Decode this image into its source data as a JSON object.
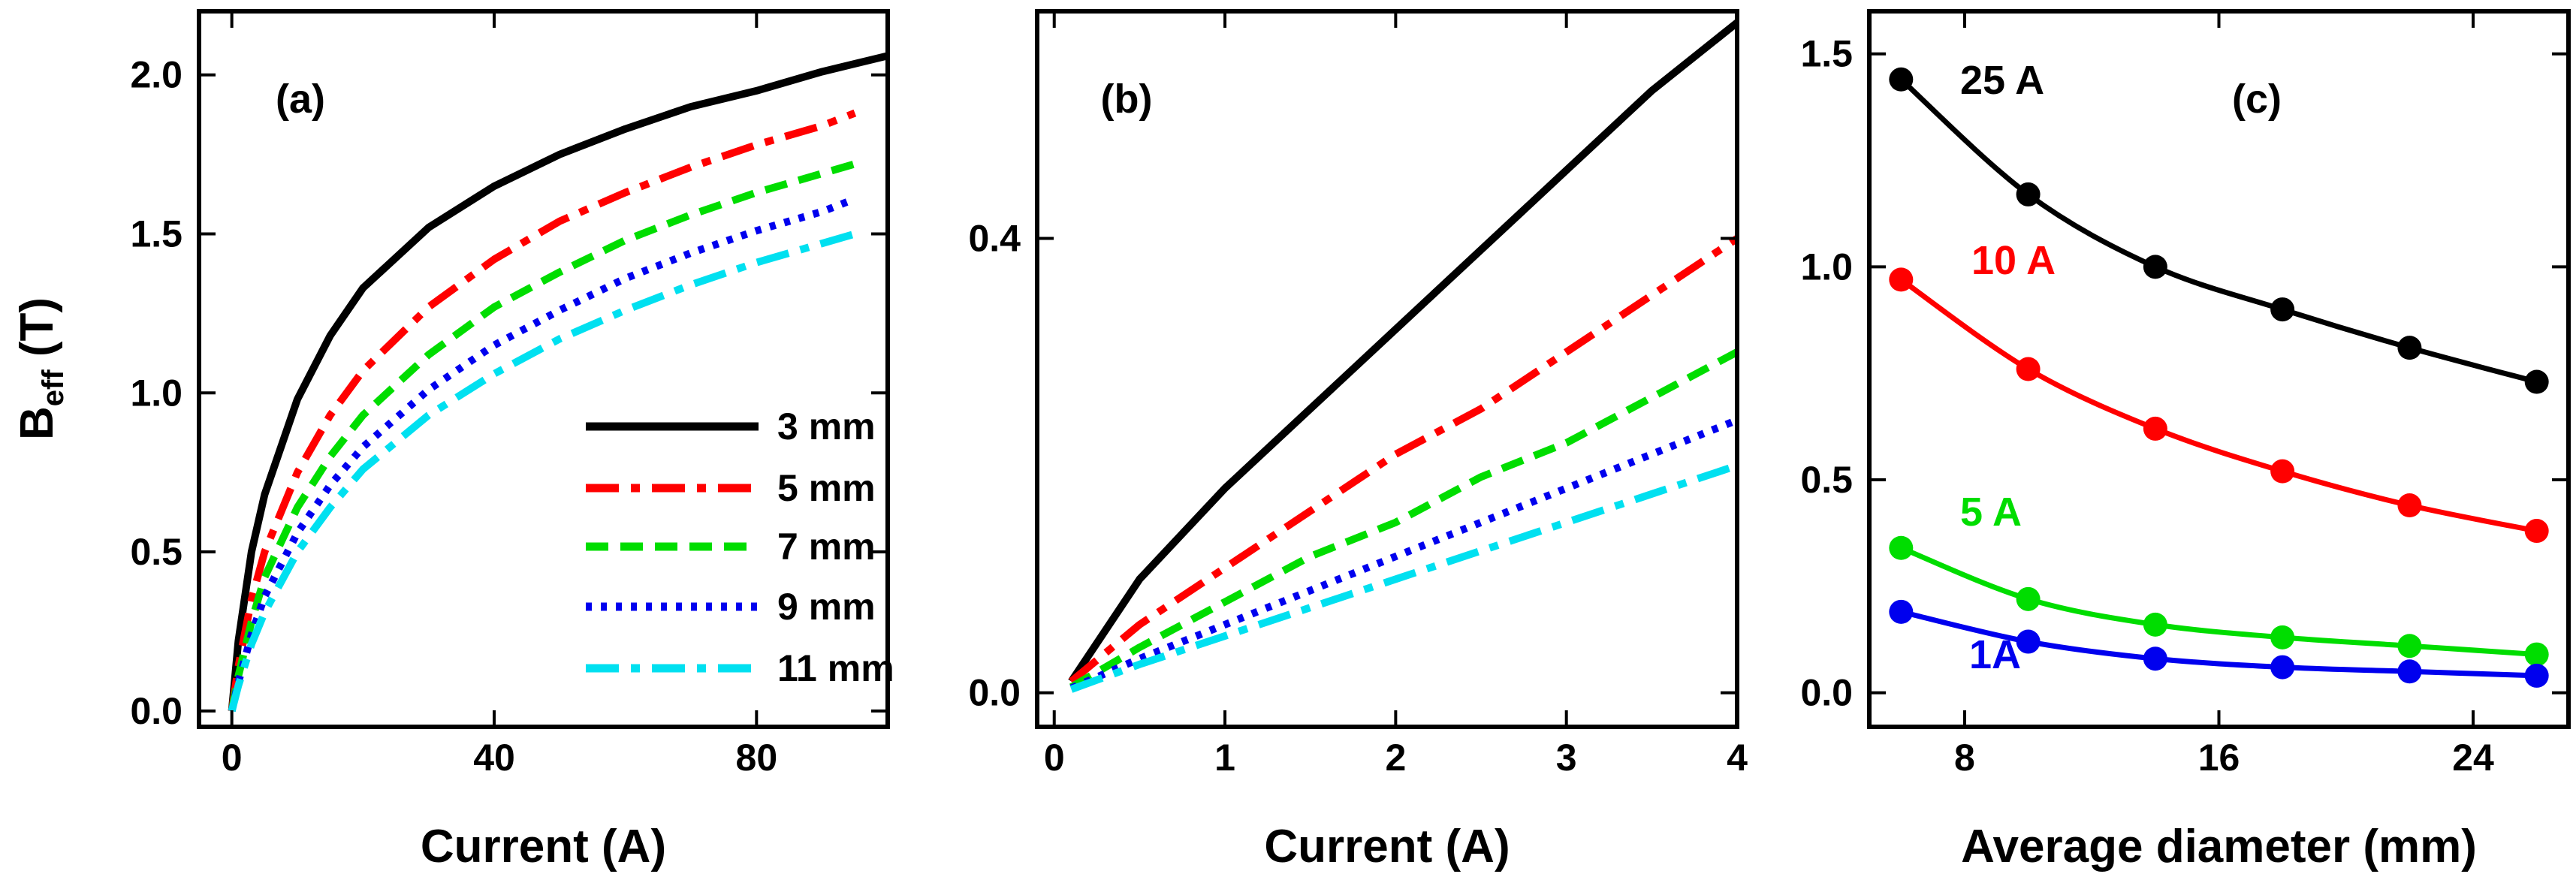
{
  "chart_data": [
    {
      "type": "line",
      "panel_label": "(a)",
      "xlabel": "Current (A)",
      "ylabel": "B",
      "ylabel_sub": "eff",
      "ylabel_unit": "(T)",
      "xlim": [
        -5,
        100
      ],
      "ylim": [
        -0.05,
        2.2
      ],
      "xticks": [
        0,
        40,
        80
      ],
      "xtick_labels": [
        "0",
        "40",
        "80"
      ],
      "yticks": [
        0,
        0.5,
        1.0,
        1.5,
        2.0
      ],
      "ytick_labels": [
        "0.0",
        "0.5",
        "1.0",
        "1.5",
        "2.0"
      ],
      "legend": {
        "placement": "bottom-right",
        "entries": [
          "3 mm",
          "5 mm",
          "7 mm",
          "9 mm",
          "11 mm"
        ]
      },
      "series": [
        {
          "name": "3 mm",
          "color": "#000000",
          "dash": "solid",
          "x": [
            0,
            1,
            3,
            5,
            10,
            15,
            20,
            30,
            40,
            50,
            60,
            70,
            80,
            90,
            100
          ],
          "y": [
            0,
            0.22,
            0.5,
            0.68,
            0.98,
            1.18,
            1.33,
            1.52,
            1.65,
            1.75,
            1.83,
            1.9,
            1.95,
            2.01,
            2.06
          ]
        },
        {
          "name": "5 mm",
          "color": "#ff0000",
          "dash": "dashdot",
          "x": [
            0,
            1,
            3,
            5,
            10,
            15,
            20,
            30,
            40,
            50,
            60,
            70,
            80,
            90,
            95
          ],
          "y": [
            0,
            0.14,
            0.35,
            0.5,
            0.75,
            0.93,
            1.07,
            1.27,
            1.42,
            1.54,
            1.63,
            1.71,
            1.78,
            1.84,
            1.88
          ]
        },
        {
          "name": "7 mm",
          "color": "#00dd00",
          "dash": "dash",
          "x": [
            0,
            1,
            3,
            5,
            10,
            15,
            20,
            30,
            40,
            50,
            60,
            70,
            80,
            90,
            95
          ],
          "y": [
            0,
            0.11,
            0.28,
            0.42,
            0.64,
            0.8,
            0.93,
            1.12,
            1.27,
            1.38,
            1.48,
            1.56,
            1.63,
            1.69,
            1.72
          ]
        },
        {
          "name": "9 mm",
          "color": "#0000ee",
          "dash": "dot",
          "x": [
            0,
            1,
            3,
            5,
            10,
            15,
            20,
            30,
            40,
            50,
            60,
            70,
            80,
            90,
            95
          ],
          "y": [
            0,
            0.09,
            0.24,
            0.36,
            0.56,
            0.71,
            0.83,
            1.01,
            1.15,
            1.26,
            1.36,
            1.44,
            1.51,
            1.57,
            1.61
          ]
        },
        {
          "name": "11 mm",
          "color": "#00e0f0",
          "dash": "dashdot",
          "x": [
            0,
            1,
            3,
            5,
            10,
            15,
            20,
            30,
            40,
            50,
            60,
            70,
            80,
            90,
            95
          ],
          "y": [
            0,
            0.08,
            0.21,
            0.31,
            0.5,
            0.64,
            0.76,
            0.93,
            1.06,
            1.17,
            1.26,
            1.34,
            1.41,
            1.47,
            1.5
          ]
        }
      ]
    },
    {
      "type": "line",
      "panel_label": "(b)",
      "xlabel": "Current (A)",
      "xlim": [
        -0.1,
        4.0
      ],
      "ylim": [
        -0.03,
        0.6
      ],
      "xticks": [
        0,
        1,
        2,
        3,
        4
      ],
      "xtick_labels": [
        "0",
        "1",
        "2",
        "3",
        "4"
      ],
      "yticks": [
        0,
        0.4
      ],
      "ytick_labels": [
        "0.0",
        "0.4"
      ],
      "series": [
        {
          "name": "3 mm",
          "color": "#000000",
          "dash": "solid",
          "x": [
            0.1,
            0.5,
            1,
            1.5,
            2,
            2.5,
            3,
            3.5,
            4
          ],
          "y": [
            0.01,
            0.1,
            0.18,
            0.25,
            0.32,
            0.39,
            0.46,
            0.53,
            0.59
          ]
        },
        {
          "name": "5 mm",
          "color": "#ff0000",
          "dash": "dashdot",
          "x": [
            0.1,
            0.5,
            1,
            1.5,
            2,
            2.5,
            3,
            3.5,
            4
          ],
          "y": [
            0.01,
            0.06,
            0.11,
            0.16,
            0.21,
            0.25,
            0.3,
            0.35,
            0.4
          ]
        },
        {
          "name": "7 mm",
          "color": "#00dd00",
          "dash": "dash",
          "x": [
            0.1,
            0.5,
            1,
            1.5,
            2,
            2.5,
            3,
            3.5,
            4
          ],
          "y": [
            0.005,
            0.04,
            0.08,
            0.12,
            0.15,
            0.19,
            0.22,
            0.26,
            0.3
          ]
        },
        {
          "name": "9 mm",
          "color": "#0000ee",
          "dash": "dot",
          "x": [
            0.1,
            0.5,
            1,
            1.5,
            2,
            2.5,
            3,
            3.5,
            4
          ],
          "y": [
            0.004,
            0.03,
            0.06,
            0.09,
            0.12,
            0.15,
            0.18,
            0.21,
            0.24
          ]
        },
        {
          "name": "11 mm",
          "color": "#00e0f0",
          "dash": "dashdot",
          "x": [
            0.1,
            0.5,
            1,
            1.5,
            2,
            2.5,
            3,
            3.5,
            4
          ],
          "y": [
            0.003,
            0.025,
            0.05,
            0.075,
            0.1,
            0.125,
            0.15,
            0.175,
            0.2
          ]
        }
      ]
    },
    {
      "type": "line",
      "panel_label": "(c)",
      "xlabel": "Average diameter (mm)",
      "xlim": [
        5,
        27
      ],
      "ylim": [
        -0.08,
        1.6
      ],
      "xticks": [
        8,
        16,
        24
      ],
      "xtick_labels": [
        "8",
        "16",
        "24"
      ],
      "yticks": [
        0,
        0.5,
        1.0,
        1.5
      ],
      "ytick_labels": [
        "0.0",
        "0.5",
        "1.0",
        "1.5"
      ],
      "series": [
        {
          "name": "25 A",
          "color": "#000000",
          "x": [
            6,
            10,
            14,
            18,
            22,
            26
          ],
          "y": [
            1.44,
            1.17,
            1.0,
            0.9,
            0.81,
            0.73
          ]
        },
        {
          "name": "10 A",
          "color": "#ff0000",
          "x": [
            6,
            10,
            14,
            18,
            22,
            26
          ],
          "y": [
            0.97,
            0.76,
            0.62,
            0.52,
            0.44,
            0.38
          ]
        },
        {
          "name": "5 A",
          "color": "#00dd00",
          "x": [
            6,
            10,
            14,
            18,
            22,
            26
          ],
          "y": [
            0.34,
            0.22,
            0.16,
            0.13,
            0.11,
            0.09
          ]
        },
        {
          "name": "1A",
          "color": "#0000ee",
          "x": [
            6,
            10,
            14,
            18,
            22,
            26
          ],
          "y": [
            0.19,
            0.12,
            0.08,
            0.06,
            0.05,
            0.04
          ]
        }
      ],
      "annotations": [
        "25 A",
        "10 A",
        "5 A",
        "1A"
      ]
    }
  ]
}
